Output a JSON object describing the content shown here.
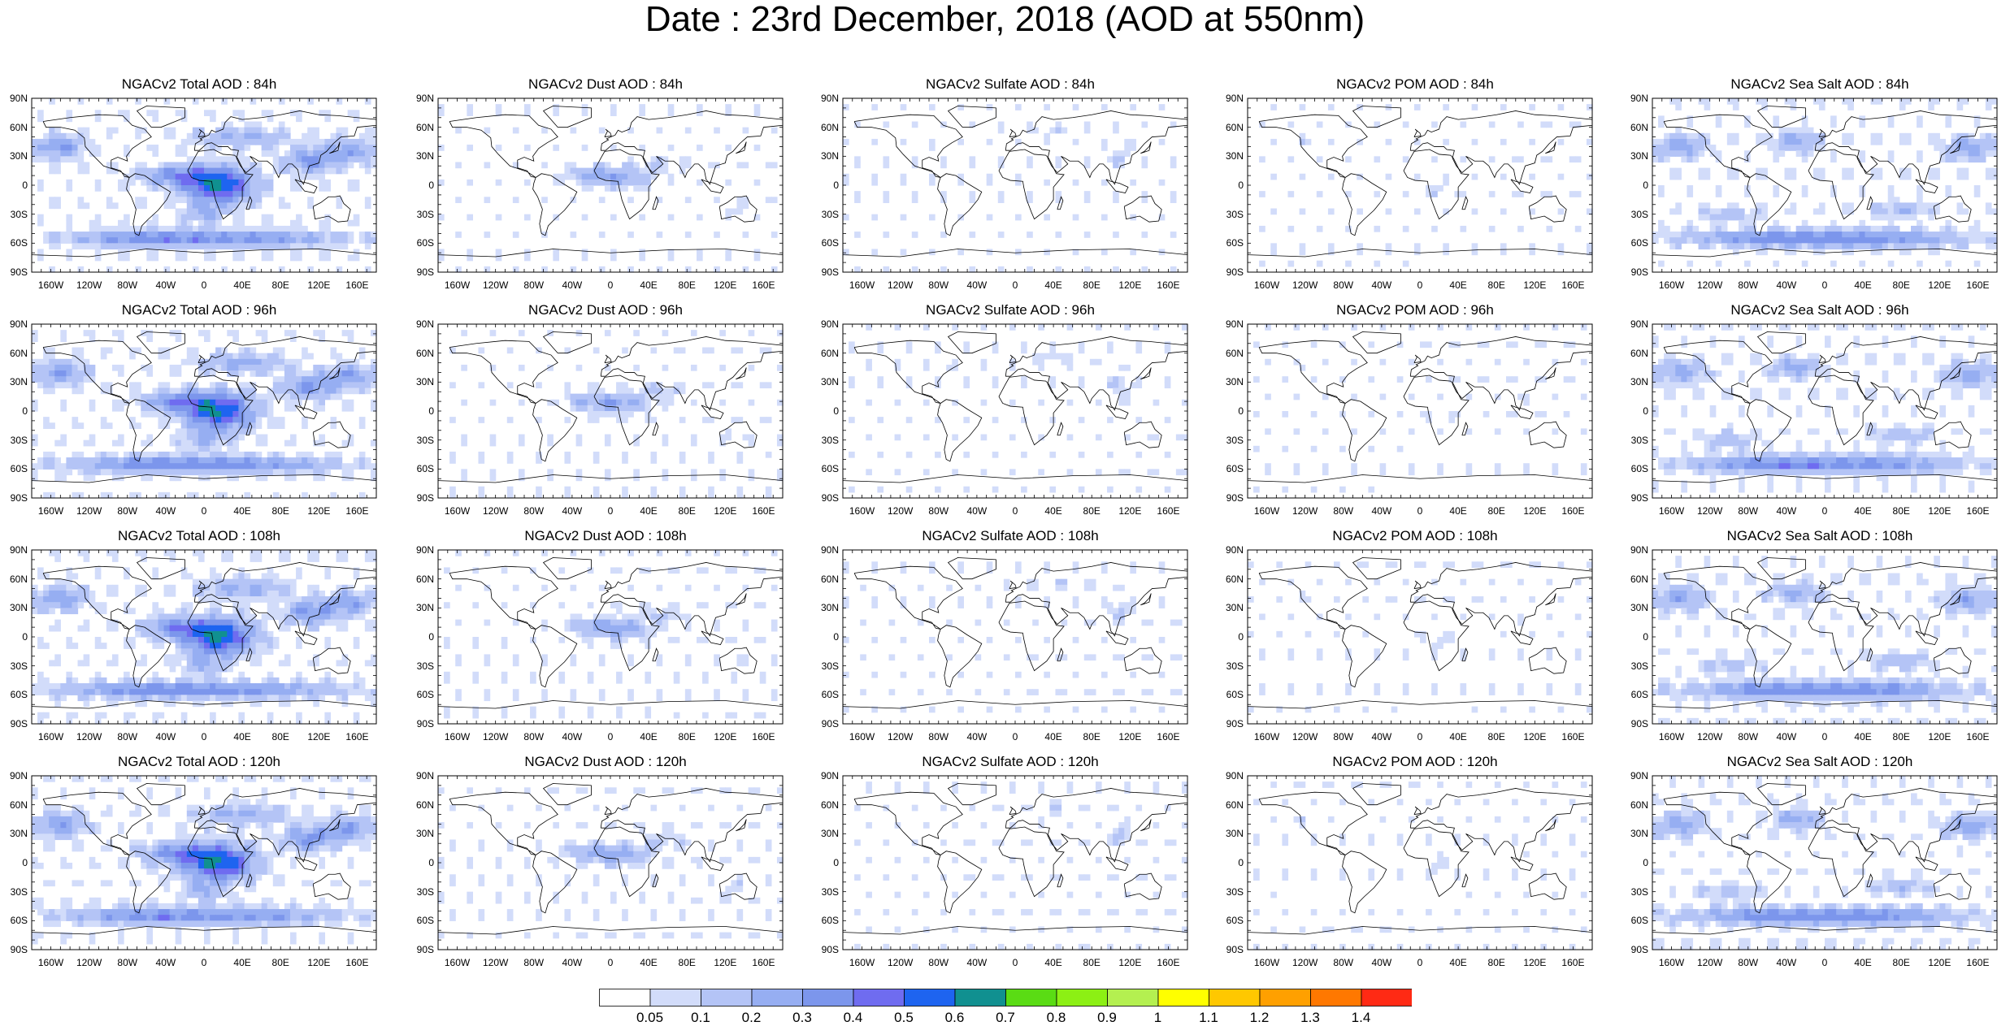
{
  "title": "Date : 23rd December, 2018 (AOD at 550nm)",
  "lat_ticks": [
    "90N",
    "60N",
    "30N",
    "0",
    "30S",
    "60S",
    "90S"
  ],
  "lon_ticks": [
    "160W",
    "120W",
    "80W",
    "40W",
    "0",
    "40E",
    "80E",
    "120E",
    "160E"
  ],
  "colorbar": {
    "levels": [
      "0.05",
      "0.1",
      "0.2",
      "0.3",
      "0.4",
      "0.5",
      "0.6",
      "0.7",
      "0.8",
      "0.9",
      "1",
      "1.1",
      "1.2",
      "1.3",
      "1.4"
    ],
    "colors": [
      "#ffffff",
      "#d2dcfa",
      "#b4c4f6",
      "#96aef2",
      "#7c96ec",
      "#6f6cf0",
      "#1e64f0",
      "#109090",
      "#5adc14",
      "#8cf014",
      "#b4f050",
      "#ffff00",
      "#ffc800",
      "#ffa000",
      "#ff7800",
      "#ff2a14"
    ]
  },
  "columns": [
    {
      "species": "Total",
      "intensity": 1.0
    },
    {
      "species": "Dust",
      "intensity": 0.45
    },
    {
      "species": "Sulfate",
      "intensity": 0.25
    },
    {
      "species": "POM",
      "intensity": 0.2
    },
    {
      "species": "Sea Salt",
      "intensity": 0.8
    }
  ],
  "panels": [
    [
      "NGACv2 Total AOD : 84h",
      "NGACv2 Dust AOD : 84h",
      "NGACv2 Sulfate AOD : 84h",
      "NGACv2 POM AOD : 84h",
      "NGACv2 Sea Salt AOD : 84h"
    ],
    [
      "NGACv2 Total AOD : 96h",
      "NGACv2 Dust AOD : 96h",
      "NGACv2 Sulfate AOD : 96h",
      "NGACv2 POM AOD : 96h",
      "NGACv2 Sea Salt AOD : 96h"
    ],
    [
      "NGACv2 Total AOD : 108h",
      "NGACv2 Dust AOD : 108h",
      "NGACv2 Sulfate AOD : 108h",
      "NGACv2 POM AOD : 108h",
      "NGACv2 Sea Salt AOD : 108h"
    ],
    [
      "NGACv2 Total AOD : 120h",
      "NGACv2 Dust AOD : 120h",
      "NGACv2 Sulfate AOD : 120h",
      "NGACv2 POM AOD : 120h",
      "NGACv2 Sea Salt  AOD : 120h"
    ]
  ]
}
